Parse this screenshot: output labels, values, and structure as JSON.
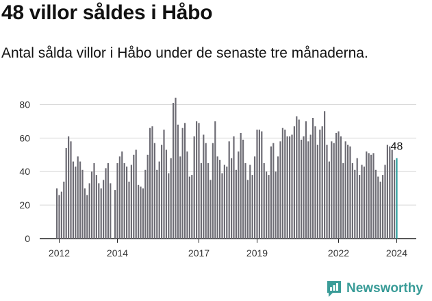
{
  "header": {
    "title": "48 villor såldes i Håbo",
    "subtitle": "Antal sålda villor i Håbo under de senaste tre månaderna."
  },
  "brand": {
    "name": "Newsworthy",
    "icon": "newsworthy-logo-icon",
    "color": "#3a9c98"
  },
  "colors": {
    "bar": "#6d6c74",
    "highlight": "#2a9d9b",
    "grid": "#d9d9d9"
  },
  "chart_data": {
    "type": "bar",
    "title": "",
    "xlabel": "",
    "ylabel": "",
    "ylim": [
      0,
      90
    ],
    "y_ticks": [
      0,
      20,
      40,
      60,
      80
    ],
    "x_tick_labels": [
      "2012",
      "2014",
      "2017",
      "2019",
      "2022",
      "2024"
    ],
    "x_tick_index": [
      1,
      26,
      61,
      86,
      121,
      146
    ],
    "highlight_label": "48",
    "values": [
      30,
      26,
      28,
      34,
      54,
      61,
      58,
      46,
      43,
      49,
      46,
      41,
      30,
      26,
      33,
      40,
      45,
      38,
      33,
      30,
      35,
      42,
      45,
      33,
      0,
      29,
      45,
      49,
      52,
      45,
      43,
      34,
      44,
      50,
      53,
      32,
      31,
      30,
      41,
      50,
      66,
      67,
      57,
      41,
      46,
      56,
      65,
      53,
      39,
      48,
      81,
      84,
      68,
      49,
      66,
      69,
      52,
      37,
      38,
      61,
      70,
      69,
      45,
      62,
      57,
      45,
      35,
      57,
      70,
      49,
      47,
      39,
      44,
      43,
      58,
      48,
      61,
      41,
      52,
      63,
      59,
      45,
      35,
      44,
      38,
      49,
      65,
      65,
      64,
      45,
      40,
      38,
      55,
      57,
      40,
      49,
      58,
      66,
      65,
      61,
      61,
      62,
      67,
      73,
      71,
      59,
      61,
      70,
      58,
      62,
      72,
      67,
      56,
      65,
      67,
      76,
      56,
      46,
      58,
      57,
      63,
      64,
      61,
      45,
      58,
      56,
      55,
      45,
      41,
      48,
      38,
      44,
      43,
      52,
      51,
      50,
      51,
      41,
      37,
      34,
      38,
      44,
      56,
      55,
      53,
      47,
      48
    ]
  }
}
